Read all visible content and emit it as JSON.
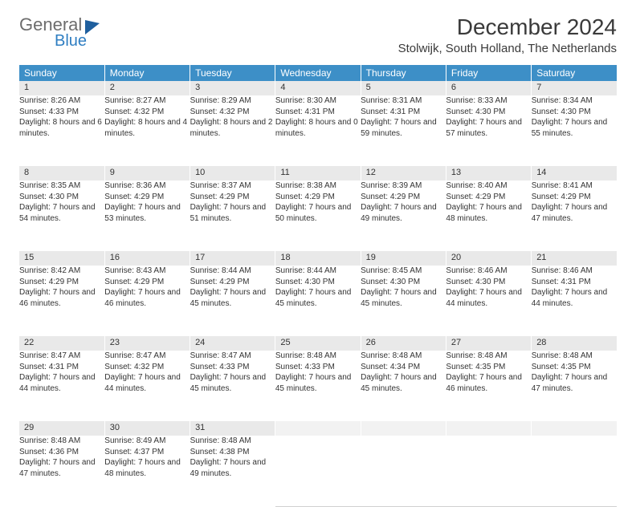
{
  "logo": {
    "textTop": "General",
    "textBottom": "Blue"
  },
  "title": "December 2024",
  "location": "Stolwijk, South Holland, The Netherlands",
  "colors": {
    "headerBg": "#3d8fc7",
    "headerText": "#ffffff",
    "dayNumBg": "#e9e9e9",
    "ruleColor": "#2f6ea8",
    "logoGray": "#6d6d6d",
    "logoBlue": "#2f7ec2"
  },
  "weekdays": [
    "Sunday",
    "Monday",
    "Tuesday",
    "Wednesday",
    "Thursday",
    "Friday",
    "Saturday"
  ],
  "weeks": [
    [
      {
        "n": "1",
        "sr": "8:26 AM",
        "ss": "4:33 PM",
        "dl": "8 hours and 6 minutes."
      },
      {
        "n": "2",
        "sr": "8:27 AM",
        "ss": "4:32 PM",
        "dl": "8 hours and 4 minutes."
      },
      {
        "n": "3",
        "sr": "8:29 AM",
        "ss": "4:32 PM",
        "dl": "8 hours and 2 minutes."
      },
      {
        "n": "4",
        "sr": "8:30 AM",
        "ss": "4:31 PM",
        "dl": "8 hours and 0 minutes."
      },
      {
        "n": "5",
        "sr": "8:31 AM",
        "ss": "4:31 PM",
        "dl": "7 hours and 59 minutes."
      },
      {
        "n": "6",
        "sr": "8:33 AM",
        "ss": "4:30 PM",
        "dl": "7 hours and 57 minutes."
      },
      {
        "n": "7",
        "sr": "8:34 AM",
        "ss": "4:30 PM",
        "dl": "7 hours and 55 minutes."
      }
    ],
    [
      {
        "n": "8",
        "sr": "8:35 AM",
        "ss": "4:30 PM",
        "dl": "7 hours and 54 minutes."
      },
      {
        "n": "9",
        "sr": "8:36 AM",
        "ss": "4:29 PM",
        "dl": "7 hours and 53 minutes."
      },
      {
        "n": "10",
        "sr": "8:37 AM",
        "ss": "4:29 PM",
        "dl": "7 hours and 51 minutes."
      },
      {
        "n": "11",
        "sr": "8:38 AM",
        "ss": "4:29 PM",
        "dl": "7 hours and 50 minutes."
      },
      {
        "n": "12",
        "sr": "8:39 AM",
        "ss": "4:29 PM",
        "dl": "7 hours and 49 minutes."
      },
      {
        "n": "13",
        "sr": "8:40 AM",
        "ss": "4:29 PM",
        "dl": "7 hours and 48 minutes."
      },
      {
        "n": "14",
        "sr": "8:41 AM",
        "ss": "4:29 PM",
        "dl": "7 hours and 47 minutes."
      }
    ],
    [
      {
        "n": "15",
        "sr": "8:42 AM",
        "ss": "4:29 PM",
        "dl": "7 hours and 46 minutes."
      },
      {
        "n": "16",
        "sr": "8:43 AM",
        "ss": "4:29 PM",
        "dl": "7 hours and 46 minutes."
      },
      {
        "n": "17",
        "sr": "8:44 AM",
        "ss": "4:29 PM",
        "dl": "7 hours and 45 minutes."
      },
      {
        "n": "18",
        "sr": "8:44 AM",
        "ss": "4:30 PM",
        "dl": "7 hours and 45 minutes."
      },
      {
        "n": "19",
        "sr": "8:45 AM",
        "ss": "4:30 PM",
        "dl": "7 hours and 45 minutes."
      },
      {
        "n": "20",
        "sr": "8:46 AM",
        "ss": "4:30 PM",
        "dl": "7 hours and 44 minutes."
      },
      {
        "n": "21",
        "sr": "8:46 AM",
        "ss": "4:31 PM",
        "dl": "7 hours and 44 minutes."
      }
    ],
    [
      {
        "n": "22",
        "sr": "8:47 AM",
        "ss": "4:31 PM",
        "dl": "7 hours and 44 minutes."
      },
      {
        "n": "23",
        "sr": "8:47 AM",
        "ss": "4:32 PM",
        "dl": "7 hours and 44 minutes."
      },
      {
        "n": "24",
        "sr": "8:47 AM",
        "ss": "4:33 PM",
        "dl": "7 hours and 45 minutes."
      },
      {
        "n": "25",
        "sr": "8:48 AM",
        "ss": "4:33 PM",
        "dl": "7 hours and 45 minutes."
      },
      {
        "n": "26",
        "sr": "8:48 AM",
        "ss": "4:34 PM",
        "dl": "7 hours and 45 minutes."
      },
      {
        "n": "27",
        "sr": "8:48 AM",
        "ss": "4:35 PM",
        "dl": "7 hours and 46 minutes."
      },
      {
        "n": "28",
        "sr": "8:48 AM",
        "ss": "4:35 PM",
        "dl": "7 hours and 47 minutes."
      }
    ],
    [
      {
        "n": "29",
        "sr": "8:48 AM",
        "ss": "4:36 PM",
        "dl": "7 hours and 47 minutes."
      },
      {
        "n": "30",
        "sr": "8:49 AM",
        "ss": "4:37 PM",
        "dl": "7 hours and 48 minutes."
      },
      {
        "n": "31",
        "sr": "8:48 AM",
        "ss": "4:38 PM",
        "dl": "7 hours and 49 minutes."
      },
      null,
      null,
      null,
      null
    ]
  ],
  "labels": {
    "sunrise": "Sunrise:",
    "sunset": "Sunset:",
    "daylight": "Daylight:"
  }
}
